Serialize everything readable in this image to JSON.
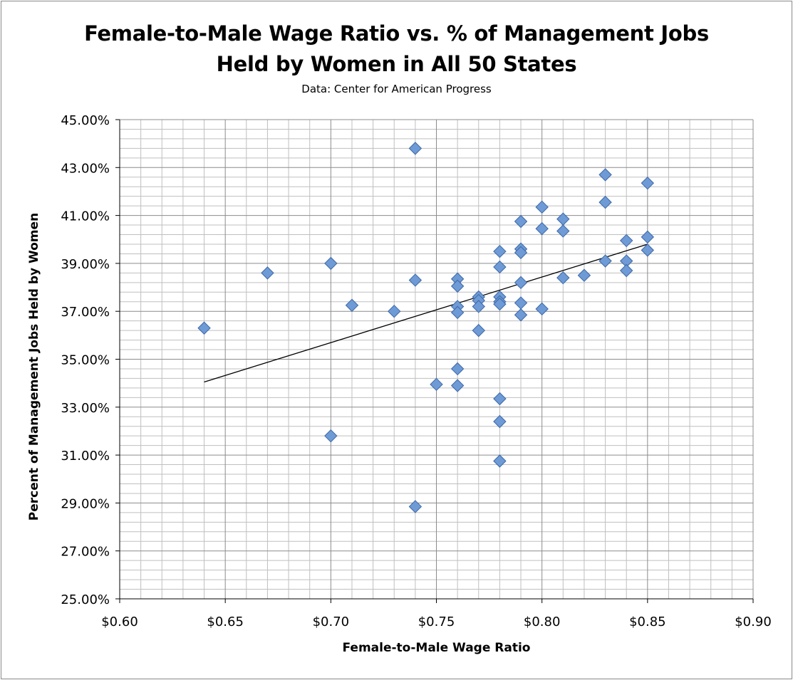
{
  "chart_data": {
    "type": "scatter",
    "title_lines": [
      "Female-to-Male Wage Ratio vs. % of Management Jobs",
      "Held by Women in All 50 States"
    ],
    "subtitle": "Data: Center for American Progress",
    "xlabel": "Female-to-Male Wage Ratio",
    "ylabel": "Percent of Management Jobs Held by Women",
    "xlim": [
      0.6,
      0.9
    ],
    "ylim": [
      25,
      45
    ],
    "x_ticks": [
      {
        "value": 0.6,
        "label": "$0.60"
      },
      {
        "value": 0.65,
        "label": "$0.65"
      },
      {
        "value": 0.7,
        "label": "$0.70"
      },
      {
        "value": 0.75,
        "label": "$0.75"
      },
      {
        "value": 0.8,
        "label": "$0.80"
      },
      {
        "value": 0.85,
        "label": "$0.85"
      },
      {
        "value": 0.9,
        "label": "$0.90"
      }
    ],
    "y_ticks": [
      {
        "value": 25,
        "label": "25.00%"
      },
      {
        "value": 27,
        "label": "27.00%"
      },
      {
        "value": 29,
        "label": "29.00%"
      },
      {
        "value": 31,
        "label": "31.00%"
      },
      {
        "value": 33,
        "label": "33.00%"
      },
      {
        "value": 35,
        "label": "35.00%"
      },
      {
        "value": 37,
        "label": "37.00%"
      },
      {
        "value": 39,
        "label": "39.00%"
      },
      {
        "value": 41,
        "label": "41.00%"
      },
      {
        "value": 43,
        "label": "43.00%"
      },
      {
        "value": 45,
        "label": "45.00%"
      }
    ],
    "grid": {
      "major": true,
      "minor": true
    },
    "legend": "none",
    "marker": "diamond",
    "colors": {
      "marker_fill": "#6e9ad6",
      "marker_edge": "#3c68a6",
      "trendline": "#000000",
      "grid_major": "#8c8c8c",
      "grid_minor": "#bfbfbf"
    },
    "points": [
      {
        "x": 0.64,
        "y": 36.3
      },
      {
        "x": 0.67,
        "y": 38.6
      },
      {
        "x": 0.7,
        "y": 39.0
      },
      {
        "x": 0.7,
        "y": 31.8
      },
      {
        "x": 0.71,
        "y": 37.25
      },
      {
        "x": 0.73,
        "y": 37.0
      },
      {
        "x": 0.74,
        "y": 43.8
      },
      {
        "x": 0.74,
        "y": 38.3
      },
      {
        "x": 0.74,
        "y": 28.85
      },
      {
        "x": 0.75,
        "y": 33.95
      },
      {
        "x": 0.76,
        "y": 38.35
      },
      {
        "x": 0.76,
        "y": 38.05
      },
      {
        "x": 0.76,
        "y": 37.2
      },
      {
        "x": 0.76,
        "y": 36.95
      },
      {
        "x": 0.76,
        "y": 34.6
      },
      {
        "x": 0.76,
        "y": 33.9
      },
      {
        "x": 0.77,
        "y": 37.6
      },
      {
        "x": 0.77,
        "y": 37.45
      },
      {
        "x": 0.77,
        "y": 37.2
      },
      {
        "x": 0.77,
        "y": 36.2
      },
      {
        "x": 0.78,
        "y": 39.5
      },
      {
        "x": 0.78,
        "y": 38.85
      },
      {
        "x": 0.78,
        "y": 37.6
      },
      {
        "x": 0.78,
        "y": 37.4
      },
      {
        "x": 0.78,
        "y": 37.3
      },
      {
        "x": 0.78,
        "y": 33.35
      },
      {
        "x": 0.78,
        "y": 32.4
      },
      {
        "x": 0.78,
        "y": 30.75
      },
      {
        "x": 0.79,
        "y": 40.75
      },
      {
        "x": 0.79,
        "y": 39.6
      },
      {
        "x": 0.79,
        "y": 39.45
      },
      {
        "x": 0.79,
        "y": 38.2
      },
      {
        "x": 0.79,
        "y": 37.35
      },
      {
        "x": 0.79,
        "y": 36.85
      },
      {
        "x": 0.8,
        "y": 41.35
      },
      {
        "x": 0.8,
        "y": 40.45
      },
      {
        "x": 0.8,
        "y": 37.1
      },
      {
        "x": 0.81,
        "y": 40.85
      },
      {
        "x": 0.81,
        "y": 40.35
      },
      {
        "x": 0.81,
        "y": 38.4
      },
      {
        "x": 0.82,
        "y": 38.5
      },
      {
        "x": 0.83,
        "y": 42.7
      },
      {
        "x": 0.83,
        "y": 41.55
      },
      {
        "x": 0.83,
        "y": 39.1
      },
      {
        "x": 0.84,
        "y": 39.95
      },
      {
        "x": 0.84,
        "y": 39.1
      },
      {
        "x": 0.84,
        "y": 38.7
      },
      {
        "x": 0.85,
        "y": 42.35
      },
      {
        "x": 0.85,
        "y": 40.1
      },
      {
        "x": 0.85,
        "y": 39.55
      }
    ],
    "trendline": {
      "type": "linear",
      "x": [
        0.64,
        0.85
      ],
      "y": [
        34.05,
        39.8
      ]
    }
  }
}
